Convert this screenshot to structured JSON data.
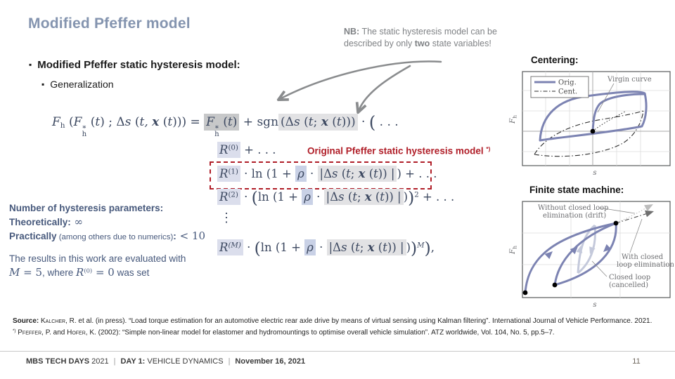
{
  "colors": {
    "title": "#8494af",
    "accent_red": "#b01e28",
    "note_blue": "#47597c",
    "formula_ink": "#3d4961",
    "curve_purple": "#7c83b2",
    "curve_light_purple": "#c4c9db",
    "nb_gray": "#7f8285",
    "highlight_dark_gray": "#c7c8c9",
    "highlight_light_gray": "#e2e2e4",
    "highlight_lavender": "#dbdeec",
    "highlight_blue": "#c9d1e6"
  },
  "header": {
    "title": "Modified Pfeffer model"
  },
  "bullets": {
    "marker": "▪",
    "level1": "Modified Pfeffer static hysteresis model:",
    "level2": "Generalization"
  },
  "nb": {
    "tokens": [
      {
        "t": "NB:",
        "s": [
          "b"
        ]
      },
      {
        "t": " The static hysteresis model can be described by only "
      },
      {
        "t": "two",
        "s": [
          "b"
        ]
      },
      {
        "t": " state variables!"
      }
    ]
  },
  "formula": {
    "line1": [
      {
        "t": "F",
        "s": [
          "v"
        ]
      },
      {
        "t": "h",
        "s": [
          "d"
        ]
      },
      {
        "t": " (",
        "s": [
          "r"
        ]
      },
      {
        "t": "F",
        "s": [
          "v"
        ]
      },
      {
        "st": {
          "u": "∗",
          "d": "h"
        }
      },
      {
        "t": " (",
        "s": [
          "r"
        ]
      },
      {
        "t": "t",
        "s": [
          "v"
        ]
      },
      {
        "t": ") ; Δ",
        "s": [
          "r"
        ]
      },
      {
        "t": "s",
        "s": [
          "v"
        ]
      },
      {
        "t": " (",
        "s": [
          "r"
        ]
      },
      {
        "t": "t,",
        "s": [
          "v"
        ]
      },
      {
        "t": " ",
        "s": [
          "r"
        ]
      },
      {
        "t": "x",
        "s": [
          "vb"
        ]
      },
      {
        "t": " (",
        "s": [
          "r"
        ]
      },
      {
        "t": "t",
        "s": [
          "v"
        ]
      },
      {
        "t": "))) = ",
        "s": [
          "r"
        ]
      },
      {
        "g": [
          {
            "t": "F",
            "s": [
              "v"
            ]
          },
          {
            "st": {
              "u": "∗",
              "d": "h"
            }
          },
          {
            "t": " (",
            "s": [
              "r"
            ]
          },
          {
            "t": "t",
            "s": [
              "v"
            ]
          },
          {
            "t": ")",
            "s": [
              "r"
            ]
          }
        ],
        "s": [
          "h1"
        ]
      },
      {
        "t": " + sgn",
        "s": [
          "r"
        ]
      },
      {
        "g": [
          {
            "t": "(Δ",
            "s": [
              "r"
            ]
          },
          {
            "t": "s",
            "s": [
              "v"
            ]
          },
          {
            "t": " (",
            "s": [
              "r"
            ]
          },
          {
            "t": "t",
            "s": [
              "v"
            ]
          },
          {
            "t": "; ",
            "s": [
              "r"
            ]
          },
          {
            "t": "x",
            "s": [
              "vb"
            ]
          },
          {
            "t": " (",
            "s": [
              "r"
            ]
          },
          {
            "t": "t",
            "s": [
              "v"
            ]
          },
          {
            "t": ")))",
            "s": [
              "r"
            ]
          }
        ],
        "s": [
          "h2"
        ]
      },
      {
        "t": " · ",
        "s": [
          "r"
        ]
      },
      {
        "t": "(",
        "s": [
          "r",
          "big"
        ]
      },
      {
        "t": " . . .",
        "s": [
          "r"
        ]
      }
    ],
    "line_r0": [
      {
        "g": [
          {
            "t": "R",
            "s": [
              "v"
            ]
          },
          {
            "t": "(0)",
            "s": [
              "u"
            ]
          }
        ],
        "s": [
          "h3"
        ]
      },
      {
        "t": " + . . .",
        "s": [
          "r"
        ]
      }
    ],
    "red_label": [
      {
        "t": "Original Pfeffer static hysteresis model "
      },
      {
        "t": "*)",
        "s": [
          "u"
        ]
      }
    ],
    "line_r1": [
      {
        "g": [
          {
            "t": "R",
            "s": [
              "v"
            ]
          },
          {
            "t": "(1)",
            "s": [
              "u"
            ]
          }
        ],
        "s": [
          "h3"
        ]
      },
      {
        "t": " · ln (1 + ",
        "s": [
          "r"
        ]
      },
      {
        "g": [
          {
            "t": "ρ",
            "s": [
              "v"
            ]
          }
        ],
        "s": [
          "h4"
        ]
      },
      {
        "t": " · ",
        "s": [
          "r"
        ]
      },
      {
        "g": [
          {
            "t": "|Δ",
            "s": [
              "r"
            ]
          },
          {
            "t": "s",
            "s": [
              "v"
            ]
          },
          {
            "t": " (",
            "s": [
              "r"
            ]
          },
          {
            "t": "t",
            "s": [
              "v"
            ]
          },
          {
            "t": "; ",
            "s": [
              "r"
            ]
          },
          {
            "t": "x",
            "s": [
              "vb"
            ]
          },
          {
            "t": " (",
            "s": [
              "r"
            ]
          },
          {
            "t": "t",
            "s": [
              "v"
            ]
          },
          {
            "t": ")) |",
            "s": [
              "r"
            ]
          }
        ],
        "s": [
          "h2"
        ]
      },
      {
        "t": ")",
        "s": [
          "r"
        ]
      },
      {
        "t": " + . . .",
        "s": [
          "r"
        ]
      }
    ],
    "line_r2": [
      {
        "g": [
          {
            "t": "R",
            "s": [
              "v"
            ]
          },
          {
            "t": "(2)",
            "s": [
              "u"
            ]
          }
        ],
        "s": [
          "h3"
        ]
      },
      {
        "t": " · ",
        "s": [
          "r"
        ]
      },
      {
        "t": "(",
        "s": [
          "r",
          "big"
        ]
      },
      {
        "t": "ln (1 + ",
        "s": [
          "r"
        ]
      },
      {
        "g": [
          {
            "t": "ρ",
            "s": [
              "v"
            ]
          }
        ],
        "s": [
          "h4"
        ]
      },
      {
        "t": " · ",
        "s": [
          "r"
        ]
      },
      {
        "g": [
          {
            "t": "|Δ",
            "s": [
              "r"
            ]
          },
          {
            "t": "s",
            "s": [
              "v"
            ]
          },
          {
            "t": " (",
            "s": [
              "r"
            ]
          },
          {
            "t": "t",
            "s": [
              "v"
            ]
          },
          {
            "t": "; ",
            "s": [
              "r"
            ]
          },
          {
            "t": "x",
            "s": [
              "vb"
            ]
          },
          {
            "t": " (",
            "s": [
              "r"
            ]
          },
          {
            "t": "t",
            "s": [
              "v"
            ]
          },
          {
            "t": ")) |",
            "s": [
              "r"
            ]
          }
        ],
        "s": [
          "h2"
        ]
      },
      {
        "t": ")",
        "s": [
          "r"
        ]
      },
      {
        "t": ")",
        "s": [
          "r",
          "big"
        ]
      },
      {
        "t": "2",
        "s": [
          "u"
        ]
      },
      {
        "t": " + . . .",
        "s": [
          "r"
        ]
      }
    ],
    "vdots": "⋮",
    "line_rm": [
      {
        "g": [
          {
            "t": "R",
            "s": [
              "v"
            ]
          },
          {
            "t": "(M)",
            "s": [
              "u",
              "v"
            ]
          }
        ],
        "s": [
          "h3"
        ]
      },
      {
        "t": " · ",
        "s": [
          "r"
        ]
      },
      {
        "t": "(",
        "s": [
          "r",
          "big"
        ]
      },
      {
        "t": "ln (1 + ",
        "s": [
          "r"
        ]
      },
      {
        "g": [
          {
            "t": "ρ",
            "s": [
              "v"
            ]
          }
        ],
        "s": [
          "h4"
        ]
      },
      {
        "t": " · ",
        "s": [
          "r"
        ]
      },
      {
        "g": [
          {
            "t": "|Δ",
            "s": [
              "r"
            ]
          },
          {
            "t": "s",
            "s": [
              "v"
            ]
          },
          {
            "t": " (",
            "s": [
              "r"
            ]
          },
          {
            "t": "t",
            "s": [
              "v"
            ]
          },
          {
            "t": "; ",
            "s": [
              "r"
            ]
          },
          {
            "t": "x",
            "s": [
              "vb"
            ]
          },
          {
            "t": " (",
            "s": [
              "r"
            ]
          },
          {
            "t": "t",
            "s": [
              "v"
            ]
          },
          {
            "t": ")) |",
            "s": [
              "r"
            ]
          }
        ],
        "s": [
          "h2"
        ]
      },
      {
        "t": ")",
        "s": [
          "r"
        ]
      },
      {
        "t": ")",
        "s": [
          "r",
          "big"
        ]
      },
      {
        "t": "M",
        "s": [
          "u",
          "v"
        ]
      },
      {
        "t": ")",
        "s": [
          "r",
          "big"
        ]
      },
      {
        "t": ",",
        "s": [
          "r"
        ]
      }
    ]
  },
  "left_notes": {
    "heading": [
      {
        "t": "Number of hysteresis parameters:",
        "s": [
          "b"
        ]
      }
    ],
    "theoretically": [
      {
        "t": "Theoretically:",
        "s": [
          "b"
        ]
      },
      {
        "t": " ∞",
        "s": [
          "r"
        ]
      }
    ],
    "practically": [
      {
        "t": "Practically",
        "s": [
          "b"
        ]
      },
      {
        "t": " (among others due to numerics)",
        "s": [
          "small"
        ]
      },
      {
        "t": ":",
        "s": [
          "b"
        ]
      },
      {
        "t": " < 10",
        "s": [
          "r"
        ]
      }
    ],
    "eval1": "The results in this work are evaluated with",
    "eval2": [
      {
        "t": "M",
        "s": [
          "v"
        ]
      },
      {
        "t": " = 5",
        "s": [
          "r"
        ]
      },
      {
        "t": ", where ",
        "s": []
      },
      {
        "t": "R",
        "s": [
          "v"
        ]
      },
      {
        "t": "(0)",
        "s": [
          "u"
        ]
      },
      {
        "t": " = 0",
        "s": [
          "r"
        ]
      },
      {
        "t": " was set",
        "s": []
      }
    ]
  },
  "plots": {
    "centering": {
      "title": "Centering:",
      "legend_orig": "Orig.",
      "legend_cent": "Cent.",
      "annotation_virgin": "Virgin curve",
      "xlabel": "s",
      "ylabel_main": "F",
      "ylabel_sub": "h"
    },
    "fsm": {
      "title": "Finite state machine:",
      "ann_without_1": "Without closed loop",
      "ann_without_2": "elimination (drift)",
      "ann_with_1": "With closed",
      "ann_with_2": "loop elimination",
      "ann_closed_1": "Closed loop",
      "ann_closed_2": "(cancelled)",
      "xlabel": "s",
      "ylabel_main": "F",
      "ylabel_sub": "h"
    }
  },
  "footnotes": {
    "source": [
      {
        "t": "Source:",
        "s": [
          "b"
        ]
      },
      {
        "t": " "
      },
      {
        "t": "Kalcher",
        "s": [
          "sc"
        ]
      },
      {
        "t": ", R. et al. (in press). “Load torque estimation for an automotive electric rear axle drive by means of virtual sensing using Kalman filtering”. International Journal of Vehicle Performance. 2021."
      }
    ],
    "pfeffer": [
      {
        "t": "*)",
        "s": [
          "u"
        ]
      },
      {
        "t": " "
      },
      {
        "t": "Pfeffer",
        "s": [
          "sc"
        ]
      },
      {
        "t": ", P. and "
      },
      {
        "t": "Hofer",
        "s": [
          "sc"
        ]
      },
      {
        "t": ", K. (2002): “Simple non-linear model for elastomer and hydromountings to optimise overall vehicle simulation”. ATZ worldwide, Vol. 104, No. 5, pp.5–7."
      }
    ]
  },
  "footer": {
    "tokens": [
      {
        "t": "MBS TECH DAYS",
        "s": [
          "b"
        ]
      },
      {
        "t": " 2021"
      },
      {
        "t": "|",
        "s": [
          "sep"
        ]
      },
      {
        "t": "DAY 1:",
        "s": [
          "b"
        ]
      },
      {
        "t": " VEHICLE DYNAMICS"
      },
      {
        "t": "|",
        "s": [
          "sep"
        ]
      },
      {
        "t": "November 16, 2021",
        "s": [
          "b"
        ]
      }
    ],
    "page": "11"
  }
}
